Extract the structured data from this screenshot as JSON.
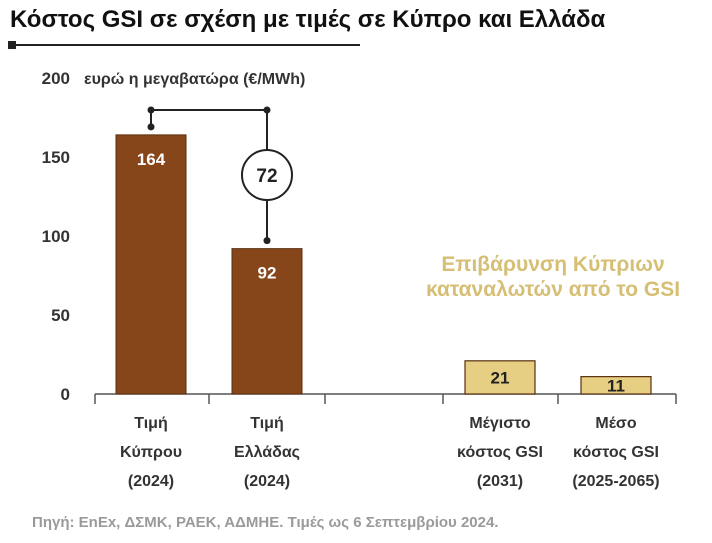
{
  "chart_data": {
    "type": "bar",
    "title": "Κόστος GSI σε σχέση με τιμές σε Κύπρο και Ελλάδα",
    "ylabel": "ευρώ η μεγαβατώρα (€/MWh)",
    "ylim": [
      0,
      200
    ],
    "yticks": [
      "0",
      "50",
      "100",
      "150",
      "200"
    ],
    "categories": [
      [
        "Τιμή",
        "Κύπρου",
        "(2024)"
      ],
      [
        "Τιμή",
        "Ελλάδας",
        "(2024)"
      ],
      [
        "Μέγιστο",
        "κόστος GSI",
        "(2031)"
      ],
      [
        "Μέσο",
        "κόστος GSI",
        "(2025-2065)"
      ]
    ],
    "values": [
      164,
      92,
      21,
      11
    ],
    "colors": [
      "#87461a",
      "#87461a",
      "#e6cf83",
      "#e6cf83"
    ],
    "difference_label": "72",
    "annotation": [
      "Επιβάρυνση Κύπριων",
      "καταναλωτών από το GSI"
    ],
    "grid": false
  },
  "source": "Πηγή: EnEx, ΔΣΜΚ, ΡΑΕΚ, ΑΔΜΗΕ. Τιμές ως 6 Σεπτεμβρίου 2024."
}
